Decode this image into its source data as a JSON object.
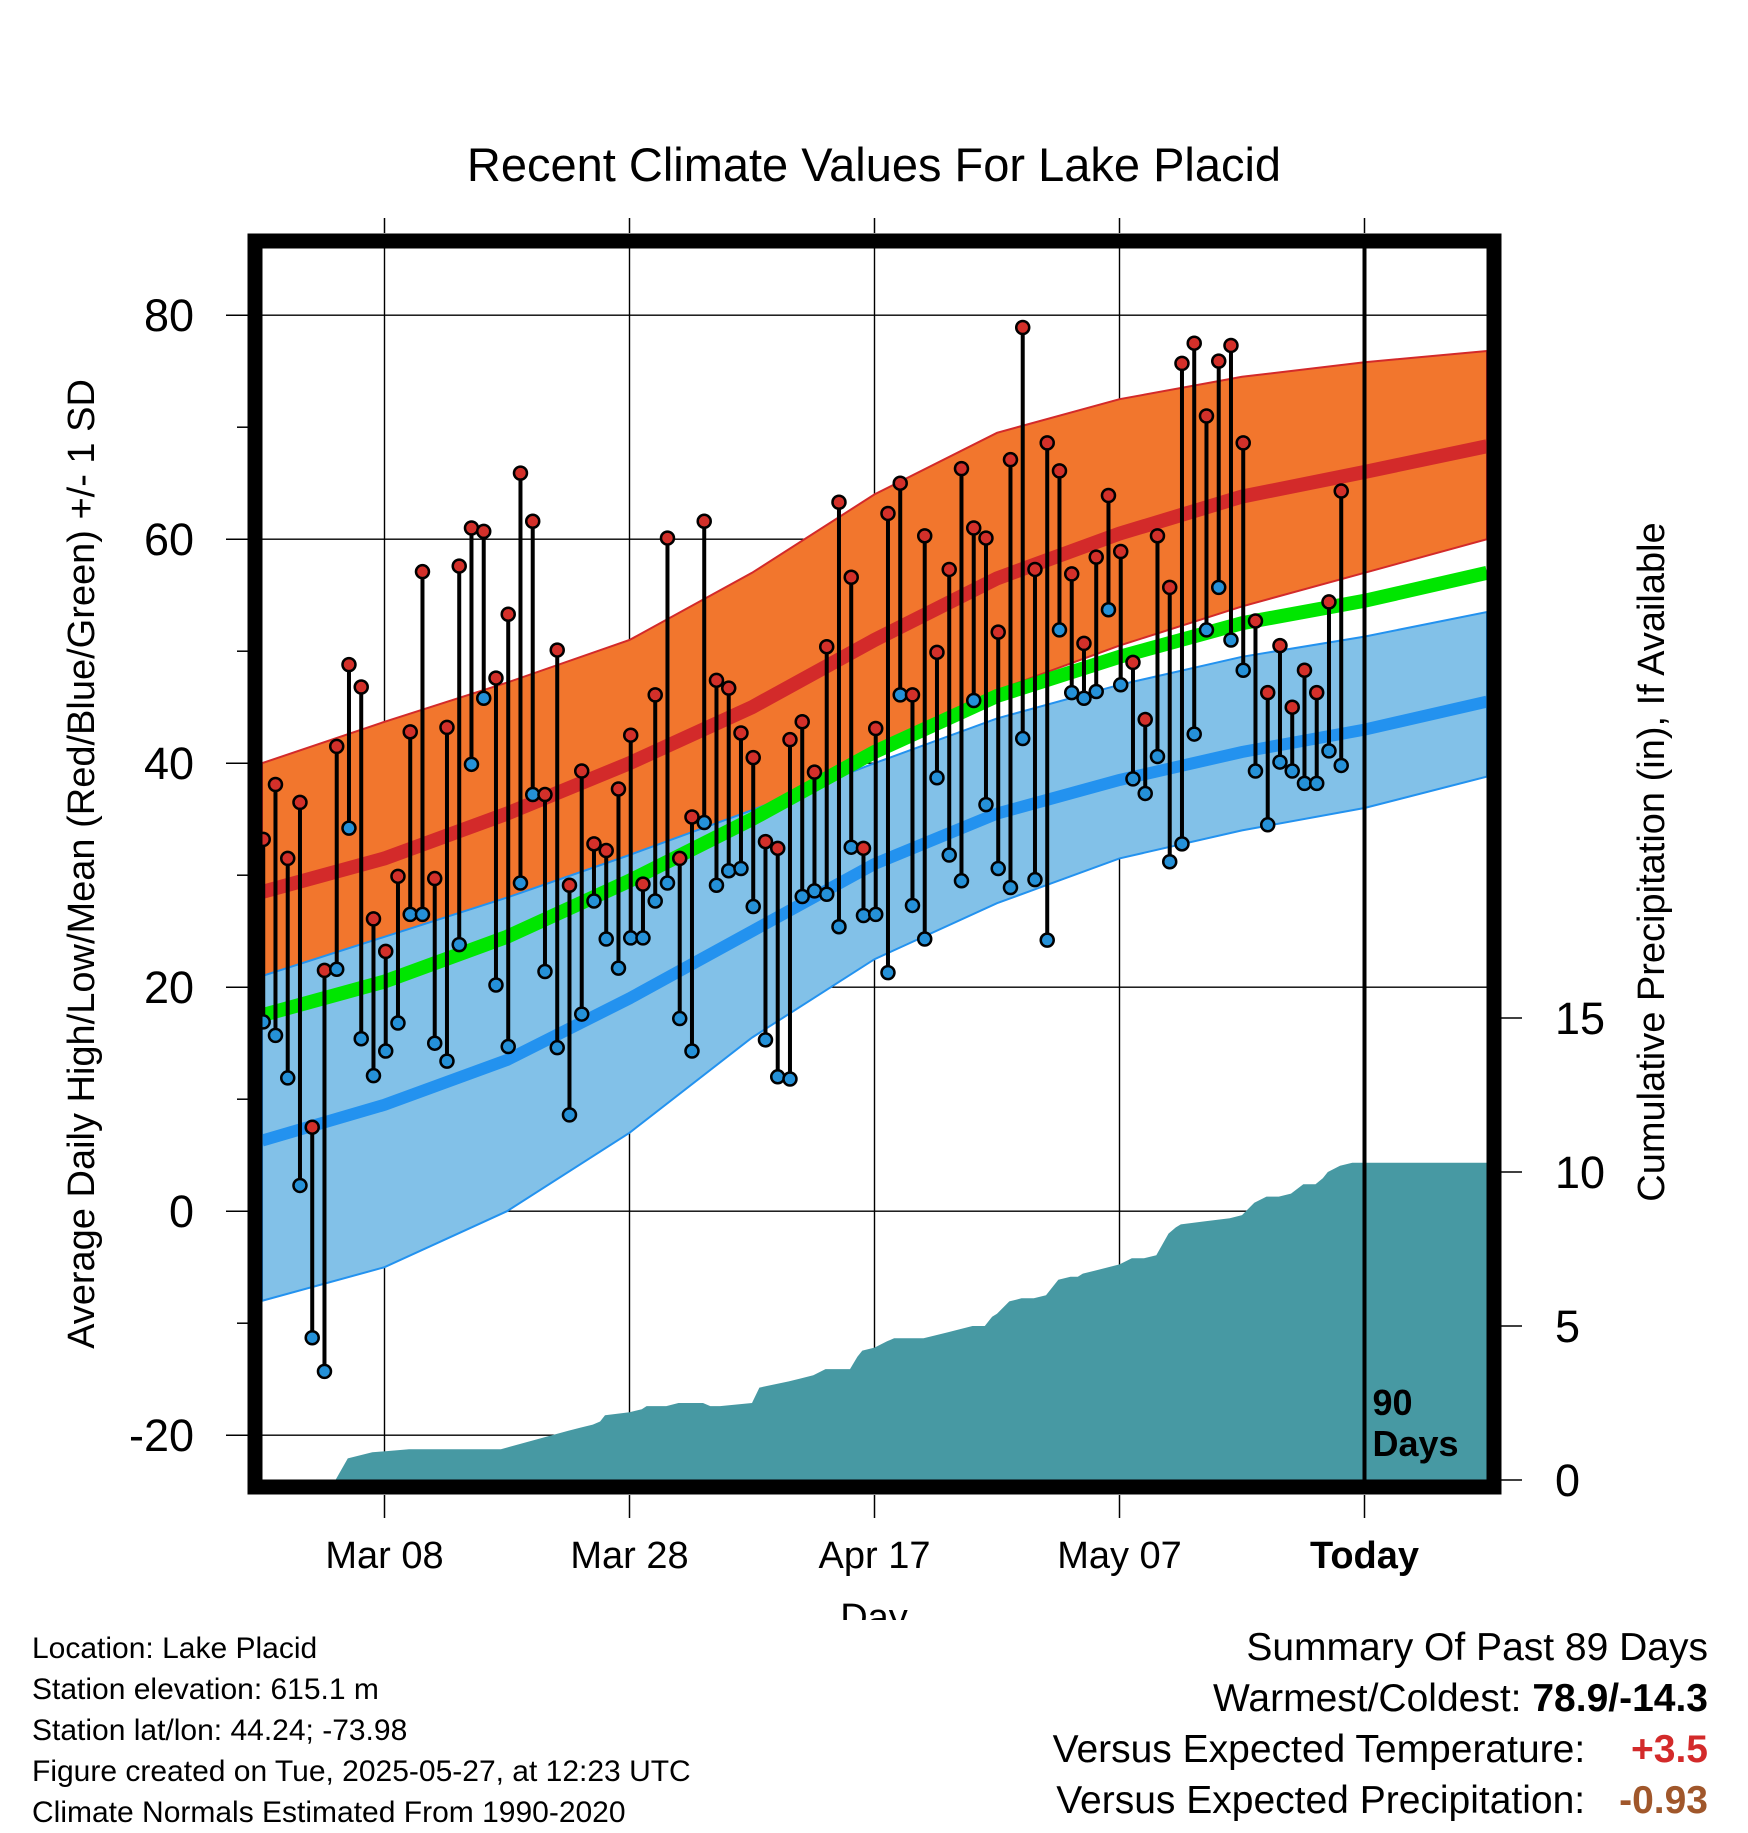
{
  "title": "Recent Climate Values For Lake Placid",
  "chart_data": {
    "type": "line",
    "title": "Recent Climate Values For Lake Placid",
    "xlabel": "Day",
    "ylabel": "Average Daily High/Low/Mean (Red/Blue/Green) +/- 1 SD",
    "y2label": "Cumulative Precipitation (in), If Available",
    "x_range_days": [
      0,
      100
    ],
    "xticks": [
      {
        "day": 10,
        "label": "Mar 08"
      },
      {
        "day": 30,
        "label": "Mar 28"
      },
      {
        "day": 50,
        "label": "Apr 17"
      },
      {
        "day": 70,
        "label": "May 07"
      },
      {
        "day": 90,
        "label": "Today"
      }
    ],
    "ylim": [
      -24,
      86
    ],
    "yticks": [
      -20,
      0,
      20,
      40,
      60,
      80
    ],
    "y2lim": [
      0,
      40
    ],
    "y2ticks": [
      0,
      5,
      10,
      15
    ],
    "today_day": 90,
    "today_label": "90 Days",
    "grid": true,
    "colors": {
      "high_band": "#f2762d",
      "high_band_edge": "#d32a2a",
      "normal_high": "#d32a2a",
      "low_band": "#82c1e8",
      "low_band_edge": "#2392ef",
      "normal_low": "#2392ef",
      "normal_mean": "#00e600",
      "precip": "#4799a3",
      "high_dot": "#d3302a",
      "low_dot": "#2591d8"
    },
    "normal_days": [
      0,
      10,
      20,
      30,
      40,
      50,
      60,
      70,
      80,
      90,
      100
    ],
    "normal_high": [
      28.5,
      31.5,
      35.5,
      40.0,
      45.0,
      51.0,
      56.5,
      60.5,
      63.8,
      66.0,
      68.3
    ],
    "normal_high_sd_top": [
      40.0,
      43.7,
      47.2,
      51.0,
      57.0,
      64.0,
      69.5,
      72.5,
      74.5,
      75.8,
      76.8
    ],
    "normal_high_sd_bottom": [
      20.5,
      23.5,
      26.8,
      30.5,
      35.0,
      41.0,
      46.5,
      50.5,
      54.0,
      57.0,
      60.0
    ],
    "normal_low": [
      6.3,
      9.5,
      13.5,
      19.0,
      25.0,
      31.0,
      35.5,
      38.5,
      41.0,
      43.0,
      45.5
    ],
    "normal_low_sd_top": [
      21.0,
      24.5,
      28.0,
      31.8,
      35.8,
      40.0,
      44.0,
      47.0,
      49.5,
      51.3,
      53.5
    ],
    "normal_low_sd_bottom": [
      -8.0,
      -5.0,
      0.0,
      7.0,
      15.5,
      22.5,
      27.5,
      31.5,
      34.0,
      36.0,
      38.8
    ],
    "normal_mean": [
      17.5,
      20.5,
      24.5,
      29.5,
      35.0,
      41.0,
      46.0,
      49.5,
      52.5,
      54.5,
      57.0
    ],
    "daily_high": [
      33.2,
      38.1,
      31.5,
      36.5,
      7.5,
      21.5,
      41.5,
      48.8,
      46.8,
      26.1,
      23.2,
      29.9,
      42.8,
      57.1,
      29.7,
      43.2,
      57.6,
      61.0,
      60.7,
      47.6,
      53.3,
      65.9,
      61.6,
      37.2,
      50.1,
      29.1,
      39.3,
      32.8,
      32.2,
      37.7,
      42.5,
      29.2,
      46.1,
      60.1,
      31.5,
      35.2,
      61.6,
      47.4,
      46.7,
      42.7,
      40.5,
      33.0,
      32.4,
      42.1,
      43.7,
      39.2,
      50.4,
      63.3,
      56.6,
      32.4,
      43.1,
      62.3,
      65.0,
      46.1,
      60.3,
      49.9,
      57.3,
      66.3,
      61.0,
      60.1,
      51.7,
      67.1,
      78.9,
      57.3,
      68.6,
      66.1,
      56.9,
      50.7,
      58.4,
      63.9,
      58.9,
      49.0,
      43.9,
      60.3,
      55.7,
      75.7,
      77.5,
      71.0,
      75.9,
      77.3,
      68.6,
      52.7,
      46.3,
      50.5,
      45.0,
      48.3,
      46.3,
      54.4,
      64.3
    ],
    "daily_low": [
      16.9,
      15.7,
      11.9,
      2.3,
      -11.3,
      -14.3,
      21.6,
      34.2,
      15.4,
      12.1,
      14.3,
      16.8,
      26.5,
      26.5,
      15.0,
      13.4,
      23.8,
      39.9,
      45.8,
      20.2,
      14.7,
      29.3,
      37.2,
      21.4,
      14.6,
      8.6,
      17.6,
      27.7,
      24.3,
      21.7,
      24.4,
      24.4,
      27.7,
      29.3,
      17.2,
      14.3,
      34.7,
      29.1,
      30.4,
      30.6,
      27.2,
      15.3,
      12.0,
      11.8,
      28.1,
      28.6,
      28.3,
      25.4,
      32.5,
      26.4,
      26.5,
      21.3,
      46.1,
      27.3,
      24.3,
      38.7,
      31.8,
      29.5,
      45.6,
      36.3,
      30.6,
      28.9,
      42.2,
      29.6,
      24.2,
      51.9,
      46.3,
      45.8,
      46.4,
      53.7,
      47.0,
      38.6,
      37.3,
      40.6,
      31.2,
      32.8,
      42.6,
      51.9,
      55.7,
      51.0,
      48.3,
      39.3,
      34.5,
      40.1,
      39.3,
      38.2,
      38.2,
      41.1,
      39.8
    ],
    "precip_days": [
      0,
      6,
      7,
      9,
      12,
      14,
      16,
      17,
      18,
      19,
      19.5,
      25,
      26,
      27,
      27.6,
      28,
      30,
      31,
      31.4,
      32,
      33,
      34,
      34.8,
      36,
      36.6,
      37,
      37.4,
      40,
      40.6,
      43,
      44,
      45,
      46,
      47,
      48,
      48.6,
      49,
      50,
      51,
      51.6,
      52,
      54,
      55,
      56,
      57,
      58,
      59,
      59.6,
      60,
      61,
      62,
      63,
      64,
      65,
      66,
      66.6,
      67,
      68,
      69,
      70,
      71,
      72,
      73,
      74,
      74.6,
      75,
      77,
      79,
      80,
      81,
      82,
      83,
      84,
      85,
      86,
      86.6,
      87,
      88,
      89,
      90,
      100
    ],
    "precip_values": [
      0,
      0,
      0.7,
      0.9,
      1.0,
      1.0,
      1.0,
      1.0,
      1.0,
      1.0,
      1.0,
      1.6,
      1.7,
      1.8,
      1.9,
      2.1,
      2.2,
      2.3,
      2.4,
      2.4,
      2.4,
      2.5,
      2.5,
      2.5,
      2.4,
      2.4,
      2.4,
      2.5,
      3.0,
      3.2,
      3.3,
      3.4,
      3.6,
      3.6,
      3.6,
      4.0,
      4.2,
      4.3,
      4.5,
      4.6,
      4.6,
      4.6,
      4.7,
      4.8,
      4.9,
      5.0,
      5.0,
      5.3,
      5.4,
      5.8,
      5.9,
      5.9,
      6.0,
      6.5,
      6.6,
      6.6,
      6.7,
      6.8,
      6.9,
      7.0,
      7.2,
      7.2,
      7.3,
      8.0,
      8.2,
      8.3,
      8.4,
      8.5,
      8.6,
      9.0,
      9.2,
      9.2,
      9.3,
      9.6,
      9.6,
      9.8,
      10.0,
      10.2,
      10.3,
      10.3,
      10.3
    ]
  },
  "info": {
    "location": "Location: Lake Placid",
    "elevation": "Station elevation: 615.1 m",
    "latlon": "Station lat/lon: 44.24; -73.98",
    "created": "Figure created on Tue, 2025-05-27, at 12:23 UTC",
    "normals": "Climate Normals Estimated From 1990-2020"
  },
  "summary": {
    "heading": "Summary Of Past 89 Days",
    "warm_cold_label": "Warmest/Coldest:",
    "warm_cold_value": "78.9/-14.3",
    "temp_label": "Versus Expected Temperature:",
    "temp_value": "+3.5",
    "temp_color": "#d32a2a",
    "precip_label": "Versus Expected Precipitation:",
    "precip_value": "-0.93",
    "precip_color": "#a0572b"
  }
}
